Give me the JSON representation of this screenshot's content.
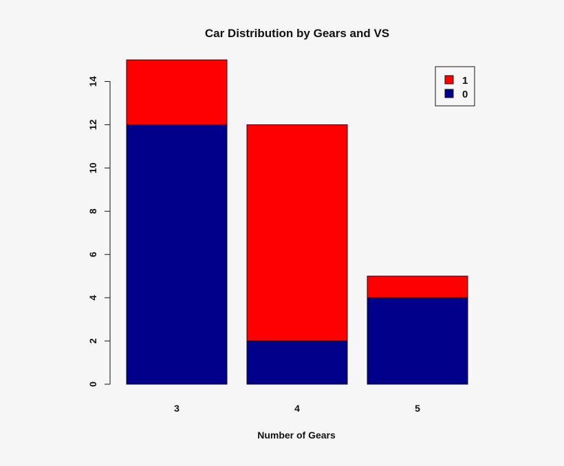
{
  "chart_data": {
    "type": "bar",
    "stacked": true,
    "title": "Car Distribution by Gears and VS",
    "xlabel": "Number of Gears",
    "ylabel": "",
    "categories": [
      "3",
      "4",
      "5"
    ],
    "series": [
      {
        "name": "0",
        "color": "#00008b",
        "values": [
          12,
          2,
          4
        ]
      },
      {
        "name": "1",
        "color": "#ff0000",
        "values": [
          3,
          10,
          1
        ]
      }
    ],
    "ylim": [
      0,
      15
    ],
    "yticks": [
      "0",
      "2",
      "4",
      "6",
      "8",
      "10",
      "12",
      "14"
    ],
    "legend": {
      "position": "top-right",
      "order": [
        "1",
        "0"
      ]
    },
    "grid": false
  }
}
